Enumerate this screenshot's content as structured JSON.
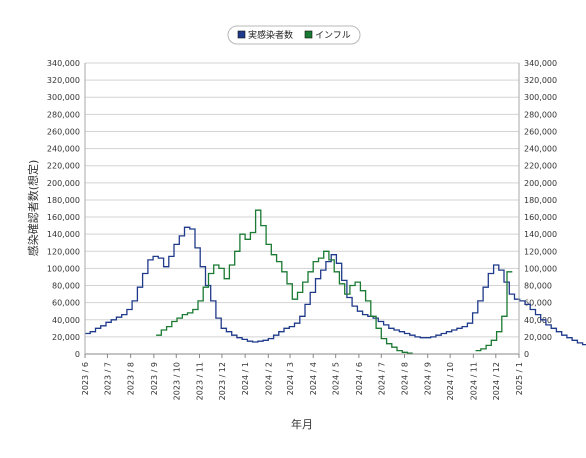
{
  "chart_data": {
    "type": "line",
    "xlabel": "年月",
    "ylabel": "感染確認者数(想定)",
    "ylim": [
      0,
      340000
    ],
    "ytick_step": 20000,
    "yticks_both_sides": true,
    "grid": true,
    "legend_position": "top-center",
    "x_tick_labels": [
      "2023 / 6",
      "2023 / 7",
      "2023 / 8",
      "2023 / 9",
      "2023 / 10",
      "2023 / 11",
      "2023 / 12",
      "2024 / 1",
      "2024 / 2",
      "2024 / 3",
      "2024 / 4",
      "2024 / 5",
      "2024 / 6",
      "2024 / 7",
      "2024 / 8",
      "2024 / 9",
      "2024 / 10",
      "2024 / 11",
      "2024 / 12",
      "2025 / 1"
    ],
    "series": [
      {
        "name": "実感染者数",
        "color": "#1f3a8a",
        "step": "week",
        "start": "2023-06-01",
        "values": [
          24000,
          26000,
          30000,
          33000,
          37000,
          40000,
          43000,
          46000,
          52000,
          62000,
          78000,
          94000,
          110000,
          114000,
          112000,
          102000,
          114000,
          128000,
          138000,
          148000,
          146000,
          124000,
          102000,
          80000,
          62000,
          42000,
          30000,
          26000,
          22000,
          19000,
          17000,
          15000,
          14000,
          15000,
          16000,
          18000,
          22000,
          26000,
          30000,
          32000,
          36000,
          44000,
          58000,
          72000,
          88000,
          98000,
          108000,
          116000,
          106000,
          86000,
          66000,
          56000,
          50000,
          46000,
          44000,
          42000,
          38000,
          34000,
          30000,
          28000,
          26000,
          24000,
          22000,
          20000,
          19000,
          19000,
          20000,
          22000,
          24000,
          26000,
          28000,
          30000,
          32000,
          36000,
          48000,
          62000,
          78000,
          94000,
          104000,
          98000,
          84000,
          70000,
          64000,
          62000,
          58000,
          52000,
          46000,
          40000,
          34000,
          30000,
          26000,
          22000,
          19000,
          16000,
          13000,
          11000,
          10000,
          9000,
          10000,
          12000,
          16000,
          20000,
          24000,
          27000
        ]
      },
      {
        "name": "インフル",
        "color": "#1a7a32",
        "step": "week",
        "start": "2023-09-04",
        "values": [
          22000,
          28000,
          32000,
          38000,
          42000,
          46000,
          48000,
          52000,
          62000,
          78000,
          94000,
          104000,
          100000,
          88000,
          104000,
          120000,
          140000,
          134000,
          142000,
          168000,
          150000,
          128000,
          116000,
          108000,
          96000,
          82000,
          64000,
          72000,
          84000,
          96000,
          108000,
          112000,
          120000,
          110000,
          96000,
          82000,
          70000,
          80000,
          84000,
          74000,
          62000,
          44000,
          30000,
          18000,
          12000,
          8000,
          4000,
          2000,
          1000
        ]
      },
      {
        "name": "インフル",
        "color": "#1a7a32",
        "step": "week",
        "start": "2024-11-04",
        "values": [
          4000,
          6000,
          10000,
          16000,
          26000,
          44000,
          96000
        ]
      }
    ]
  },
  "legend": {
    "items": [
      {
        "label": "実感染者数",
        "color": "#1f3a8a"
      },
      {
        "label": "インフル",
        "color": "#1a7a32"
      }
    ]
  }
}
